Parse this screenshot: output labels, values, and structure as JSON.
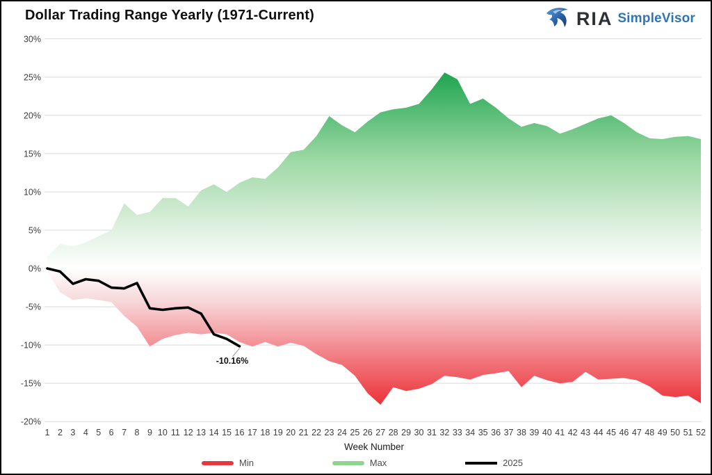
{
  "header": {
    "title": "Dollar Trading Range Yearly (1971-Current)"
  },
  "logo": {
    "brand": "RIA",
    "product": "SimpleVisor",
    "brand_color": "#2b3137",
    "product_color": "#2f74b5",
    "eagle_icon": "eagle-icon"
  },
  "chart_data": {
    "type": "area",
    "title": "Dollar Trading Range Yearly (1971-Current)",
    "xlabel": "Week Number",
    "ylabel": "",
    "ylim": [
      -20,
      30
    ],
    "yticks": [
      30,
      25,
      20,
      15,
      10,
      5,
      0,
      -5,
      -10,
      -15,
      -20
    ],
    "ytick_suffix": "%",
    "grid": true,
    "grid_color": "#d9d9d9",
    "legend_position": "bottom",
    "categories": [
      1,
      2,
      3,
      4,
      5,
      6,
      7,
      8,
      9,
      10,
      11,
      12,
      13,
      14,
      15,
      16,
      17,
      18,
      19,
      20,
      21,
      22,
      23,
      24,
      25,
      26,
      27,
      28,
      29,
      30,
      31,
      32,
      33,
      34,
      35,
      36,
      37,
      38,
      39,
      40,
      41,
      42,
      43,
      44,
      45,
      46,
      47,
      48,
      49,
      50,
      51,
      52
    ],
    "series": [
      {
        "name": "Min",
        "kind": "area",
        "deep_color": "#ec1c24",
        "mid_color": "#f2868c",
        "pale_color": "#f7d7d9",
        "legend_color": "#e6393f",
        "values": [
          -0.5,
          -3.1,
          -4.1,
          -3.9,
          -4.1,
          -4.4,
          -6.2,
          -7.6,
          -10.2,
          -9.2,
          -8.7,
          -8.4,
          -8.6,
          -8.4,
          -8.6,
          -9.6,
          -10.2,
          -9.6,
          -10.2,
          -9.7,
          -10.1,
          -11.2,
          -12.1,
          -12.6,
          -14.0,
          -16.3,
          -17.8,
          -15.5,
          -16.0,
          -15.7,
          -15.1,
          -14.0,
          -14.2,
          -14.5,
          -13.9,
          -13.7,
          -13.4,
          -15.5,
          -14.0,
          -14.6,
          -15.0,
          -14.8,
          -13.5,
          -14.5,
          -14.4,
          -14.3,
          -14.6,
          -15.4,
          -16.6,
          -16.8,
          -16.6,
          -17.6
        ]
      },
      {
        "name": "Max",
        "kind": "area",
        "deep_color": "#1aa34d",
        "mid_color": "#9cd8a4",
        "pale_color": "#dcefdd",
        "legend_color": "#8fd58f",
        "values": [
          1.5,
          3.2,
          2.9,
          3.4,
          4.2,
          5.0,
          8.5,
          7.0,
          7.4,
          9.2,
          9.2,
          8.1,
          10.2,
          11.0,
          10.0,
          11.2,
          11.9,
          11.7,
          13.2,
          15.2,
          15.5,
          17.3,
          19.9,
          18.7,
          17.8,
          19.2,
          20.4,
          20.8,
          21.0,
          21.5,
          23.4,
          25.6,
          24.7,
          21.5,
          22.2,
          21.0,
          19.6,
          18.5,
          19.0,
          18.6,
          17.6,
          18.2,
          18.9,
          19.6,
          20.0,
          19.0,
          17.8,
          17.0,
          16.9,
          17.2,
          17.3,
          16.9
        ]
      },
      {
        "name": "2025",
        "kind": "line",
        "color": "#000000",
        "legend_color": "#000000",
        "values": [
          0.0,
          -0.4,
          -2.0,
          -1.4,
          -1.6,
          -2.5,
          -2.6,
          -1.9,
          -5.2,
          -5.4,
          -5.2,
          -5.1,
          -5.9,
          -8.6,
          -9.2,
          -10.16
        ]
      }
    ],
    "annotation": {
      "text": "-10.16%",
      "week": 16,
      "value": -10.16
    }
  }
}
